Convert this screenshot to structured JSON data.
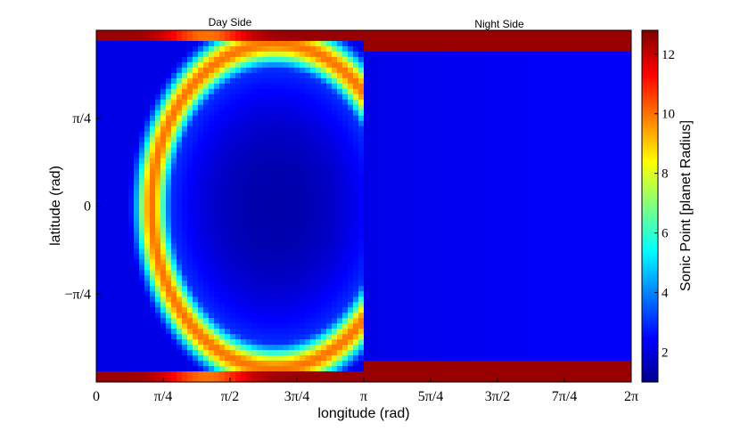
{
  "chart_data": {
    "type": "heatmap",
    "title": "",
    "annotations": [
      "Day Side",
      "Night Side"
    ],
    "xlabel": "longitude (rad)",
    "ylabel": "latitude (rad)",
    "xlim": [
      0,
      6.2832
    ],
    "ylim": [
      -1.5708,
      1.5708
    ],
    "x_ticks": [
      {
        "value": 0,
        "label": "0"
      },
      {
        "value": 0.7854,
        "label": "π/4"
      },
      {
        "value": 1.5708,
        "label": "π/2"
      },
      {
        "value": 2.3562,
        "label": "3π/4"
      },
      {
        "value": 3.1416,
        "label": "π"
      },
      {
        "value": 3.927,
        "label": "5π/4"
      },
      {
        "value": 4.7124,
        "label": "3π/2"
      },
      {
        "value": 5.4978,
        "label": "7π/4"
      },
      {
        "value": 6.2832,
        "label": "2π"
      }
    ],
    "y_ticks": [
      {
        "value": 0.7854,
        "label": "π/4"
      },
      {
        "value": 0,
        "label": "0"
      },
      {
        "value": -0.7854,
        "label": "−π/4"
      }
    ],
    "colorbar": {
      "label": "Sonic Point [planet Radius]",
      "range": [
        1,
        12.8
      ],
      "ticks": [
        2,
        4,
        6,
        8,
        10,
        12
      ],
      "colormap": "jet"
    },
    "description_values": {
      "polar_cap_day_and_night": 12.5,
      "night_side_interior": 2.2,
      "day_side_center_min": 1.5,
      "day_side_ring_max": 8.5,
      "day_side_limb_peak": 10.5,
      "night_cap_edge_latitude": 1.36,
      "day_cap_edge_latitude": 1.47
    }
  }
}
